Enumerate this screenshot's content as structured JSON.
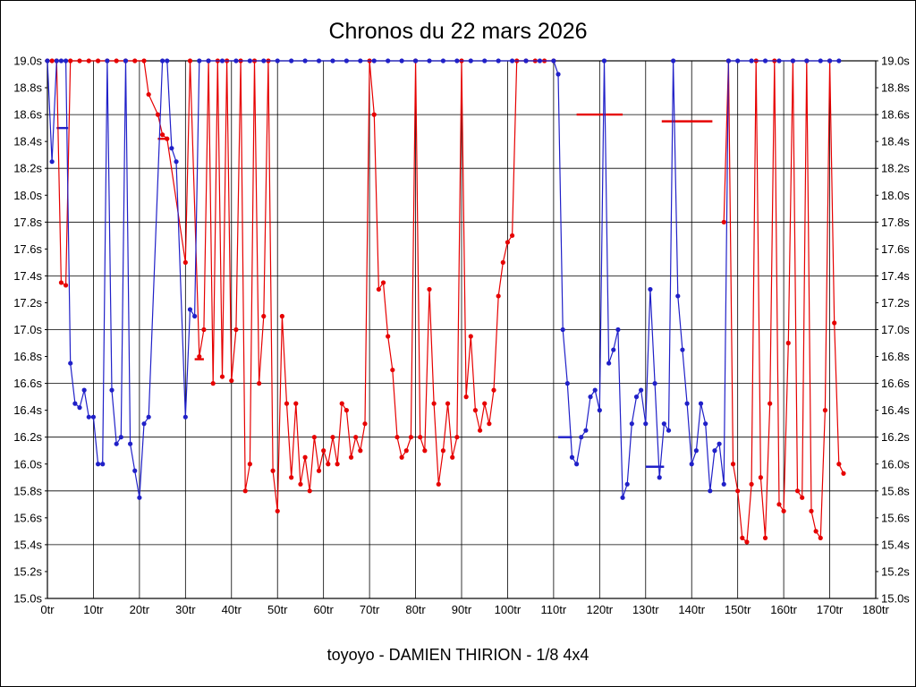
{
  "chart_data": {
    "type": "line",
    "title": "Chronos du 22 mars 2026",
    "subtitle": "toyoyo - DAMIEN THIRION - 1/8 4x4",
    "xlabel": "",
    "ylabel": "",
    "xlim": [
      0,
      180
    ],
    "ylim": [
      15.0,
      19.0
    ],
    "grid": "on",
    "x_tick_values": [
      0,
      10,
      20,
      30,
      40,
      50,
      60,
      70,
      80,
      90,
      100,
      110,
      120,
      130,
      140,
      150,
      160,
      170,
      180
    ],
    "x_tick_labels": [
      "0tr",
      "10tr",
      "20tr",
      "30tr",
      "40tr",
      "50tr",
      "60tr",
      "70tr",
      "80tr",
      "90tr",
      "100tr",
      "110tr",
      "120tr",
      "130tr",
      "140tr",
      "150tr",
      "160tr",
      "170tr",
      "180tr"
    ],
    "y_tick_values": [
      19.0,
      18.8,
      18.6,
      18.4,
      18.2,
      18.0,
      17.8,
      17.6,
      17.4,
      17.2,
      17.0,
      16.8,
      16.6,
      16.4,
      16.2,
      16.0,
      15.8,
      15.6,
      15.4,
      15.2,
      15.0
    ],
    "y_tick_labels": [
      "19.0s",
      "18.8s",
      "18.6s",
      "18.4s",
      "18.2s",
      "18.0s",
      "17.8s",
      "17.6s",
      "17.4s",
      "17.2s",
      "17.0s",
      "16.8s",
      "16.6s",
      "16.4s",
      "16.2s",
      "16.0s",
      "15.8s",
      "15.6s",
      "15.4s",
      "15.2s",
      "15.0s"
    ],
    "grid_y_values": [
      19.0,
      18.6,
      18.2,
      17.8,
      17.4,
      17.0,
      16.6,
      16.2,
      15.8,
      15.4,
      15.0
    ],
    "clamp_max": 19.0,
    "series": [
      {
        "name": "red-run",
        "color": "#e60000",
        "points": [
          [
            0,
            19
          ],
          [
            1,
            19
          ],
          [
            2,
            19
          ],
          [
            3,
            17.35
          ],
          [
            4,
            17.33
          ],
          [
            5,
            19
          ],
          [
            7,
            19
          ],
          [
            9,
            19
          ],
          [
            11,
            19
          ],
          [
            13,
            19
          ],
          [
            15,
            19
          ],
          [
            17,
            19
          ],
          [
            19,
            19
          ],
          [
            21,
            19
          ],
          [
            22,
            18.75
          ],
          [
            24,
            18.6
          ],
          [
            25,
            18.45
          ],
          [
            26,
            18.42
          ],
          [
            30,
            17.5
          ],
          [
            31,
            19
          ],
          [
            33,
            16.8
          ],
          [
            34,
            17.0
          ],
          [
            35,
            19
          ],
          [
            36,
            16.6
          ],
          [
            37,
            19
          ],
          [
            38,
            16.65
          ],
          [
            39,
            19
          ],
          [
            40,
            16.62
          ],
          [
            41,
            17.0
          ],
          [
            42,
            19
          ],
          [
            43,
            15.8
          ],
          [
            44,
            16.0
          ],
          [
            45,
            19
          ],
          [
            46,
            16.6
          ],
          [
            47,
            17.1
          ],
          [
            48,
            19
          ],
          [
            49,
            15.95
          ],
          [
            50,
            15.65
          ],
          [
            51,
            17.1
          ],
          [
            52,
            16.45
          ],
          [
            53,
            15.9
          ],
          [
            54,
            16.45
          ],
          [
            55,
            15.85
          ],
          [
            56,
            16.05
          ],
          [
            57,
            15.8
          ],
          [
            58,
            16.2
          ],
          [
            59,
            15.95
          ],
          [
            60,
            16.1
          ],
          [
            61,
            16.0
          ],
          [
            62,
            16.2
          ],
          [
            63,
            16.0
          ],
          [
            64,
            16.45
          ],
          [
            65,
            16.4
          ],
          [
            66,
            16.05
          ],
          [
            67,
            16.2
          ],
          [
            68,
            16.1
          ],
          [
            69,
            16.3
          ],
          [
            70,
            19
          ],
          [
            71,
            18.6
          ],
          [
            72,
            17.3
          ],
          [
            73,
            17.35
          ],
          [
            74,
            16.95
          ],
          [
            75,
            16.7
          ],
          [
            76,
            16.2
          ],
          [
            77,
            16.05
          ],
          [
            78,
            16.1
          ],
          [
            79,
            16.2
          ],
          [
            80,
            19
          ],
          [
            81,
            16.2
          ],
          [
            82,
            16.1
          ],
          [
            83,
            17.3
          ],
          [
            84,
            16.45
          ],
          [
            85,
            15.85
          ],
          [
            86,
            16.1
          ],
          [
            87,
            16.45
          ],
          [
            88,
            16.05
          ],
          [
            89,
            16.2
          ],
          [
            90,
            19
          ],
          [
            91,
            16.5
          ],
          [
            92,
            16.95
          ],
          [
            93,
            16.4
          ],
          [
            94,
            16.25
          ],
          [
            95,
            16.45
          ],
          [
            96,
            16.3
          ],
          [
            97,
            16.55
          ],
          [
            98,
            17.25
          ],
          [
            99,
            17.5
          ],
          [
            100,
            17.65
          ],
          [
            101,
            17.7
          ],
          [
            102,
            19
          ],
          [
            104,
            19
          ],
          [
            106,
            19
          ],
          [
            108,
            19
          ],
          [
            110,
            19
          ],
          null,
          [
            147,
            17.8
          ],
          [
            148,
            19
          ],
          [
            149,
            16.0
          ],
          [
            150,
            15.8
          ],
          [
            151,
            15.45
          ],
          [
            152,
            15.42
          ],
          [
            153,
            15.85
          ],
          [
            154,
            19
          ],
          [
            155,
            15.9
          ],
          [
            156,
            15.45
          ],
          [
            157,
            16.45
          ],
          [
            158,
            19
          ],
          [
            159,
            15.7
          ],
          [
            160,
            15.65
          ],
          [
            161,
            16.9
          ],
          [
            162,
            19
          ],
          [
            163,
            15.8
          ],
          [
            164,
            15.75
          ],
          [
            165,
            19
          ],
          [
            166,
            15.65
          ],
          [
            167,
            15.5
          ],
          [
            168,
            15.45
          ],
          [
            169,
            16.4
          ],
          [
            170,
            19
          ],
          [
            171,
            17.05
          ],
          [
            172,
            16.0
          ],
          [
            173,
            15.93
          ]
        ]
      },
      {
        "name": "blue-run",
        "color": "#2020c8",
        "points": [
          [
            0,
            19
          ],
          [
            1,
            18.25
          ],
          [
            2,
            19
          ],
          [
            3,
            19
          ],
          [
            4,
            19
          ],
          [
            5,
            16.75
          ],
          [
            6,
            16.45
          ],
          [
            7,
            16.42
          ],
          [
            8,
            16.55
          ],
          [
            9,
            16.35
          ],
          [
            10,
            16.35
          ],
          [
            11,
            16.0
          ],
          [
            12,
            16.0
          ],
          [
            13,
            19
          ],
          [
            14,
            16.55
          ],
          [
            15,
            16.15
          ],
          [
            16,
            16.2
          ],
          [
            17,
            19
          ],
          [
            18,
            16.15
          ],
          [
            19,
            15.95
          ],
          [
            20,
            15.75
          ],
          [
            21,
            16.3
          ],
          [
            22,
            16.35
          ],
          [
            25,
            19
          ],
          [
            26,
            19
          ],
          [
            27,
            18.35
          ],
          [
            28,
            18.25
          ],
          [
            30,
            16.35
          ],
          [
            31,
            17.15
          ],
          [
            32,
            17.1
          ],
          [
            33,
            19
          ],
          [
            35,
            19
          ],
          [
            38,
            19
          ],
          [
            41,
            19
          ],
          [
            44,
            19
          ],
          [
            47,
            19
          ],
          [
            50,
            19
          ],
          [
            53,
            19
          ],
          [
            56,
            19
          ],
          [
            59,
            19
          ],
          [
            62,
            19
          ],
          [
            65,
            19
          ],
          [
            68,
            19
          ],
          [
            71,
            19
          ],
          [
            74,
            19
          ],
          [
            77,
            19
          ],
          [
            80,
            19
          ],
          [
            83,
            19
          ],
          [
            86,
            19
          ],
          [
            89,
            19
          ],
          [
            92,
            19
          ],
          [
            95,
            19
          ],
          [
            98,
            19
          ],
          [
            101,
            19
          ],
          [
            104,
            19
          ],
          [
            107,
            19
          ],
          [
            110,
            19
          ],
          [
            111,
            18.9
          ],
          [
            112,
            17.0
          ],
          [
            113,
            16.6
          ],
          [
            114,
            16.05
          ],
          [
            115,
            16.0
          ],
          [
            116,
            16.2
          ],
          [
            117,
            16.25
          ],
          [
            118,
            16.5
          ],
          [
            119,
            16.55
          ],
          [
            120,
            16.4
          ],
          [
            121,
            19
          ],
          [
            122,
            16.75
          ],
          [
            123,
            16.85
          ],
          [
            124,
            17.0
          ],
          [
            125,
            15.75
          ],
          [
            126,
            15.85
          ],
          [
            127,
            16.3
          ],
          [
            128,
            16.5
          ],
          [
            129,
            16.55
          ],
          [
            130,
            16.3
          ],
          [
            131,
            17.3
          ],
          [
            132,
            16.6
          ],
          [
            133,
            15.9
          ],
          [
            134,
            16.3
          ],
          [
            135,
            16.25
          ],
          [
            136,
            19
          ],
          [
            137,
            17.25
          ],
          [
            138,
            16.85
          ],
          [
            139,
            16.45
          ],
          [
            140,
            16.0
          ],
          [
            141,
            16.1
          ],
          [
            142,
            16.45
          ],
          [
            143,
            16.3
          ],
          [
            144,
            15.8
          ],
          [
            145,
            16.1
          ],
          [
            146,
            16.15
          ],
          [
            147,
            15.85
          ],
          [
            148,
            19
          ],
          [
            150,
            19
          ],
          [
            153,
            19
          ],
          [
            156,
            19
          ],
          [
            159,
            19
          ],
          [
            162,
            19
          ],
          [
            165,
            19
          ],
          [
            168,
            19
          ],
          [
            170,
            19
          ],
          [
            172,
            19
          ]
        ]
      }
    ],
    "segments": [
      {
        "name": "blue-avg-mark-1",
        "color": "#2020c8",
        "y": 18.5,
        "x1": 2,
        "x2": 4.5
      },
      {
        "name": "red-avg-mark-1",
        "color": "#e60000",
        "y": 18.42,
        "x1": 24,
        "x2": 26
      },
      {
        "name": "red-avg-mark-2",
        "color": "#e60000",
        "y": 16.78,
        "x1": 32,
        "x2": 34
      },
      {
        "name": "blue-avg-mark-2",
        "color": "#2020c8",
        "y": 16.2,
        "x1": 111,
        "x2": 114
      },
      {
        "name": "red-avg-mark-3",
        "color": "#e60000",
        "y": 18.6,
        "x1": 115,
        "x2": 125
      },
      {
        "name": "red-avg-mark-4",
        "color": "#e60000",
        "y": 18.55,
        "x1": 133.5,
        "x2": 144.5
      },
      {
        "name": "blue-avg-mark-3",
        "color": "#2020c8",
        "y": 15.98,
        "x1": 130,
        "x2": 134
      }
    ]
  }
}
